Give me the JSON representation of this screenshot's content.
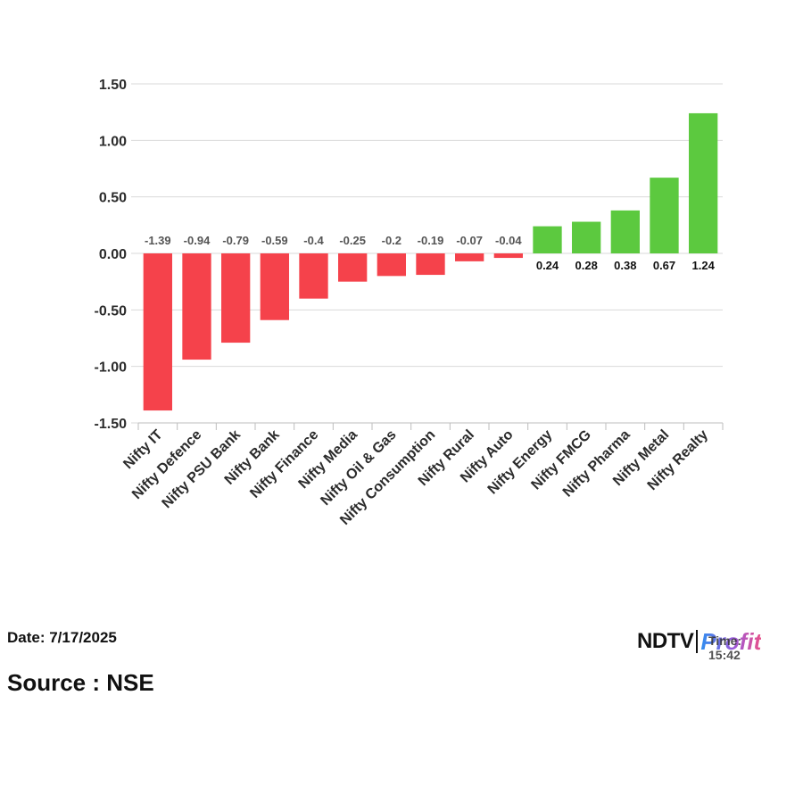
{
  "chart_data": {
    "type": "bar",
    "categories": [
      "Nifty IT",
      "Nifty Defence",
      "Nifty PSU Bank",
      "Nifty Bank",
      "Nifty Finance",
      "Nifty Media",
      "Nifty Oil & Gas",
      "Nifty Consumption",
      "Nifty Rural",
      "Nifty Auto",
      "Nifty Energy",
      "Nifty FMCG",
      "Nifty Pharma",
      "Nifty Metal",
      "Nifty Realty"
    ],
    "values": [
      -1.39,
      -0.94,
      -0.79,
      -0.59,
      -0.4,
      -0.25,
      -0.2,
      -0.19,
      -0.07,
      -0.04,
      0.24,
      0.28,
      0.38,
      0.67,
      1.24
    ],
    "value_labels": [
      "-1.39",
      "-0.94",
      "-0.79",
      "-0.59",
      "-0.4",
      "-0.25",
      "-0.2",
      "-0.19",
      "-0.07",
      "-0.04",
      "0.24",
      "0.28",
      "0.38",
      "0.67",
      "1.24"
    ],
    "yticks": [
      1.5,
      1.0,
      0.5,
      0.0,
      -0.5,
      -1.0,
      -1.5
    ],
    "ytick_labels": [
      "1.50",
      "1.00",
      "0.50",
      "0.00",
      "-0.50",
      "-1.00",
      "-1.50"
    ],
    "ylim": [
      -1.5,
      1.5
    ],
    "grid": true,
    "colors": {
      "negative": "#f5424b",
      "positive": "#5cc93f"
    }
  },
  "footer": {
    "date": "Date: 7/17/2025",
    "source": "Source : NSE",
    "logo_ndtv": "NDTV",
    "logo_profit": "Profit",
    "logo_time": "Time: 15:42"
  }
}
